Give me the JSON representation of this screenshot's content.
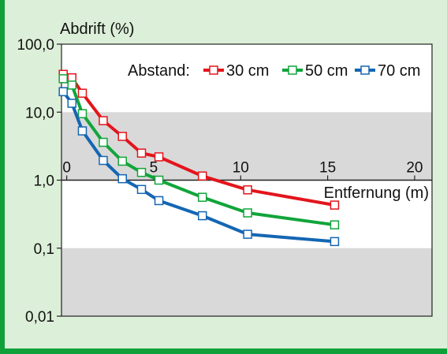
{
  "chart_data": {
    "type": "line",
    "ylabel": "Abdrift (%)",
    "xlabel": "Entfernung (m)",
    "y_scale": "log",
    "ylim": [
      0.01,
      100
    ],
    "xlim": [
      -0.3,
      21
    ],
    "y_ticks": [
      {
        "value": 100,
        "label": "100,0"
      },
      {
        "value": 10,
        "label": "10,0"
      },
      {
        "value": 1,
        "label": "1,0"
      },
      {
        "value": 0.1,
        "label": "0,1"
      },
      {
        "value": 0.01,
        "label": "0,01"
      }
    ],
    "x_ticks": [
      {
        "value": 0,
        "label": "0"
      },
      {
        "value": 5,
        "label": "5"
      },
      {
        "value": 10,
        "label": "10"
      },
      {
        "value": 15,
        "label": "15"
      },
      {
        "value": 20,
        "label": "20"
      }
    ],
    "grey_bands": [
      [
        0.01,
        0.1
      ],
      [
        1,
        10
      ]
    ],
    "legend_title": "Abstand:",
    "legend_position": "top-right",
    "series": [
      {
        "name": "30 cm",
        "color": "#e3151c",
        "x": [
          -0.2,
          0.3,
          0.9,
          2.1,
          3.2,
          4.3,
          5.3,
          7.8,
          10.4,
          15.4
        ],
        "y": [
          36,
          32,
          19,
          7.5,
          4.4,
          2.5,
          2.2,
          1.15,
          0.72,
          0.43
        ]
      },
      {
        "name": "50 cm",
        "color": "#11a53a",
        "x": [
          -0.2,
          0.3,
          0.9,
          2.1,
          3.2,
          4.3,
          5.3,
          7.8,
          10.4,
          15.4
        ],
        "y": [
          31,
          25,
          9.5,
          3.6,
          1.9,
          1.3,
          1.0,
          0.56,
          0.33,
          0.22
        ]
      },
      {
        "name": "70 cm",
        "color": "#1466b3",
        "x": [
          -0.2,
          0.3,
          0.9,
          2.1,
          3.2,
          4.3,
          5.3,
          7.8,
          10.4,
          15.4
        ],
        "y": [
          20,
          13.5,
          5.3,
          1.95,
          1.05,
          0.73,
          0.5,
          0.3,
          0.16,
          0.125
        ]
      }
    ]
  }
}
